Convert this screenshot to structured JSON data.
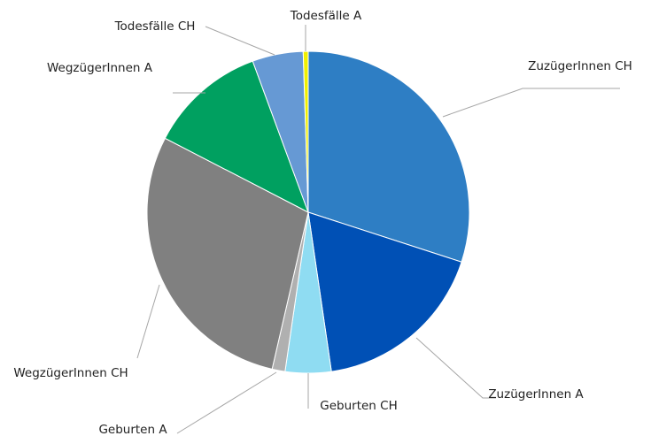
{
  "chart_data": {
    "type": "pie",
    "categories": [
      "ZuzügerInnen CH",
      "ZuzügerInnen A",
      "Geburten CH",
      "Geburten A",
      "WegzügerInnen CH",
      "WegzügerInnen A",
      "Todesfälle CH",
      "Todesfälle A"
    ],
    "values": [
      30,
      17.7,
      4.6,
      1.3,
      29,
      11.8,
      5.1,
      0.5
    ],
    "colors": [
      "#2e7ec4",
      "#0050b5",
      "#8fdcf2",
      "#b0b0b0",
      "#808080",
      "#00a060",
      "#6699d4",
      "#f0f000"
    ]
  }
}
